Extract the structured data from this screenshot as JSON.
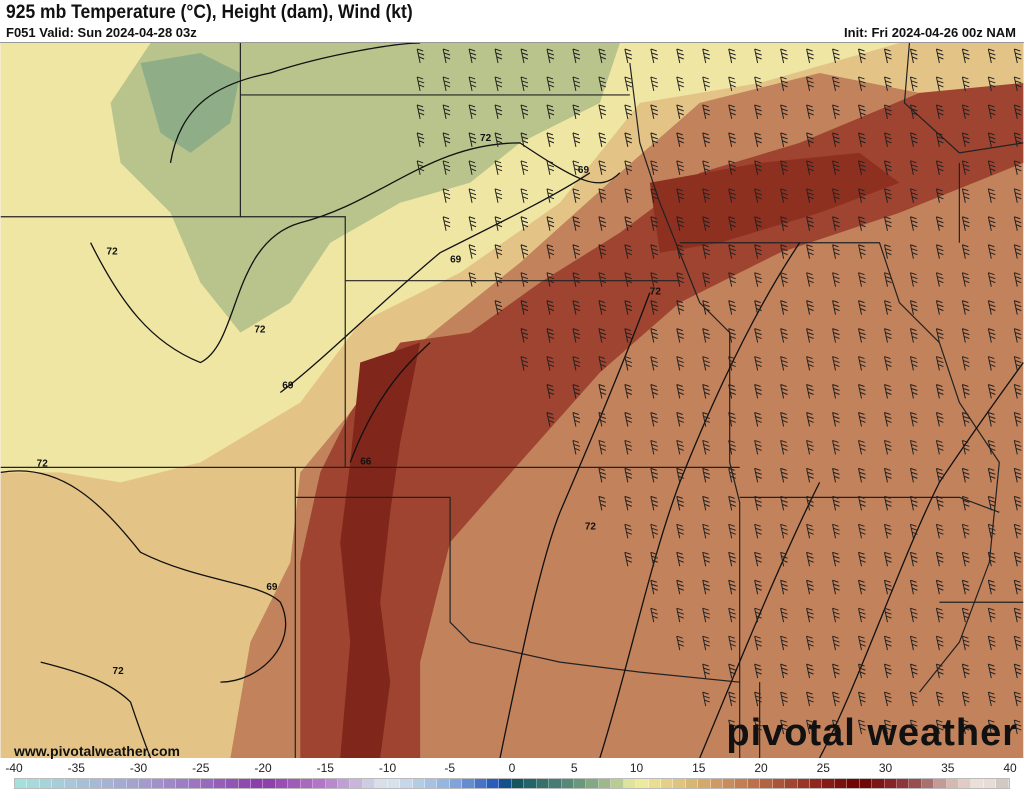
{
  "header": {
    "title": "925 mb Temperature (°C), Height (dam), Wind (kt)",
    "valid": "F051 Valid: Sun 2024-04-28 03z",
    "init": "Init: Fri 2024-04-26 00z NAM"
  },
  "map": {
    "contour_labels": [
      "72",
      "72",
      "69",
      "72",
      "69",
      "72",
      "66",
      "72",
      "72",
      "69",
      "72",
      "69"
    ]
  },
  "footer": {
    "url": "www.pivotalweather.com",
    "brand": "pivotal weather"
  },
  "colorbar": {
    "ticks": [
      "-40",
      "-35",
      "-30",
      "-25",
      "-20",
      "-15",
      "-10",
      "-5",
      "0",
      "5",
      "10",
      "15",
      "20",
      "25",
      "30",
      "35",
      "40"
    ],
    "min": -40,
    "max": 40,
    "units": "°C",
    "stops": [
      [
        -40,
        "#a6e3dc"
      ],
      [
        -35,
        "#a8c4d8"
      ],
      [
        -30,
        "#a49fcf"
      ],
      [
        -25,
        "#9a6fc0"
      ],
      [
        -20,
        "#8a3aa8"
      ],
      [
        -15,
        "#b77cc8"
      ],
      [
        -11,
        "#d0d8e4"
      ],
      [
        -10,
        "#dde8ee"
      ],
      [
        -5,
        "#8fb0dc"
      ],
      [
        -1,
        "#1b4fb8"
      ],
      [
        0,
        "#0b5060"
      ],
      [
        5,
        "#5f8f78"
      ],
      [
        8,
        "#a8c090"
      ],
      [
        10,
        "#f0f0a0"
      ],
      [
        15,
        "#d8b070"
      ],
      [
        20,
        "#b86a48"
      ],
      [
        25,
        "#8a2018"
      ],
      [
        28,
        "#6a0000"
      ],
      [
        31,
        "#8a2a30"
      ],
      [
        33,
        "#9a5a5a"
      ],
      [
        35,
        "#d0b0a8"
      ],
      [
        38,
        "#f0e8e0"
      ],
      [
        40,
        "#c8c0b8"
      ]
    ]
  }
}
